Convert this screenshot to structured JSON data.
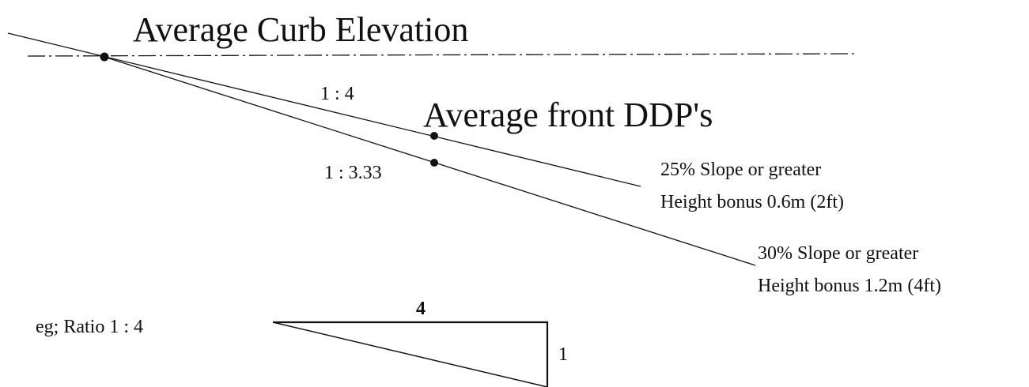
{
  "title": "Average Curb Elevation",
  "ddp_label": "Average front DDP's",
  "ratios": {
    "upper": "1 : 4",
    "lower": "1 : 3.33"
  },
  "slope_25": {
    "line1": "25% Slope or greater",
    "line2": "Height bonus 0.6m (2ft)"
  },
  "slope_30": {
    "line1": "30% Slope or greater",
    "line2": "Height bonus 1.2m (4ft)"
  },
  "example": {
    "label": "eg; Ratio  1 : 4",
    "run": "4",
    "rise": "1"
  }
}
